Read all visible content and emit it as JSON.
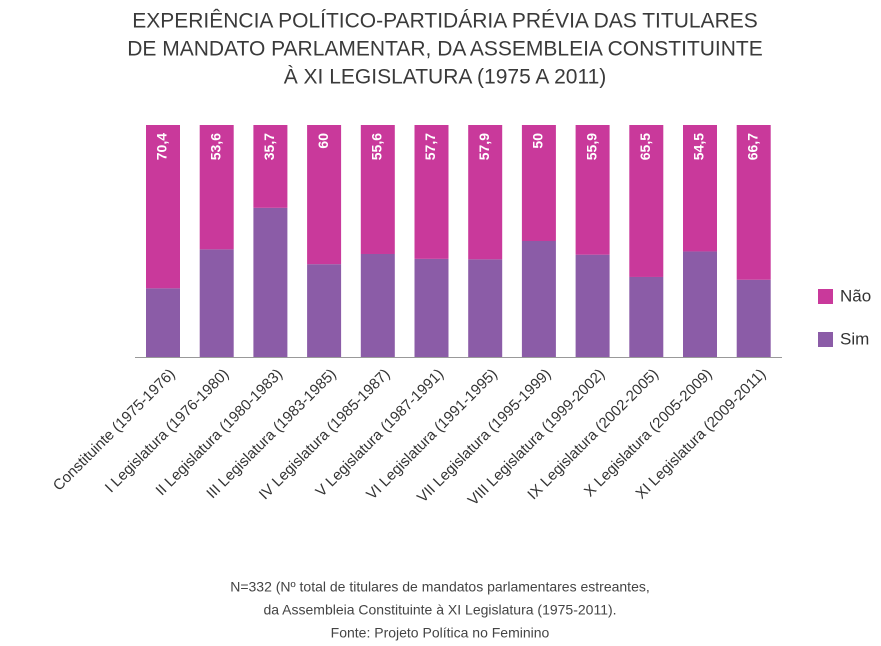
{
  "chart_data": {
    "type": "stacked_bar",
    "title": [
      "EXPERIÊNCIA POLÍTICO-PARTIDÁRIA PRÉVIA DAS TITULARES",
      "DE MANDATO PARLAMENTAR, DA ASSEMBLEIA CONSTITUINTE",
      "À XI LEGISLATURA (1975 A 2011)"
    ],
    "categories": [
      "Constituinte (1975-1976)",
      "I Legislatura (1976-1980)",
      "II Legislatura (1980-1983)",
      "III Legislatura (1983-1985)",
      "IV Legislatura (1985-1987)",
      "V Legislatura (1987-1991)",
      "VI Legislatura (1991-1995)",
      "VII Legislatura (1995-1999)",
      "VIII Legislatura (1999-2002)",
      "IX Legislatura (2002-2005)",
      "X Legislatura (2005-2009)",
      "XI Legislatura (2009-2011)"
    ],
    "series": [
      {
        "name": "Sim",
        "color": "#8b5ca7",
        "values": [
          29.6,
          46.4,
          64.3,
          40,
          44.4,
          42.3,
          42.1,
          50,
          44.1,
          34.5,
          45.5,
          33.3
        ]
      },
      {
        "name": "Não",
        "color": "#c9399b",
        "values": [
          70.4,
          53.6,
          35.7,
          60,
          55.6,
          57.7,
          57.9,
          50,
          55.9,
          65.5,
          54.5,
          66.7
        ],
        "value_labels": [
          "70,4",
          "53,6",
          "35,7",
          "60",
          "55,6",
          "57,7",
          "57,9",
          "50",
          "55,9",
          "65,5",
          "54,5",
          "66,7"
        ]
      }
    ],
    "legend": "right",
    "notes": [
      "N=332 (Nº total de titulares de mandatos parlamentares estreantes,",
      "da Assembleia Constituinte à XI Legislatura (1975-2011).",
      "Fonte: Projeto Política no Feminino"
    ]
  }
}
